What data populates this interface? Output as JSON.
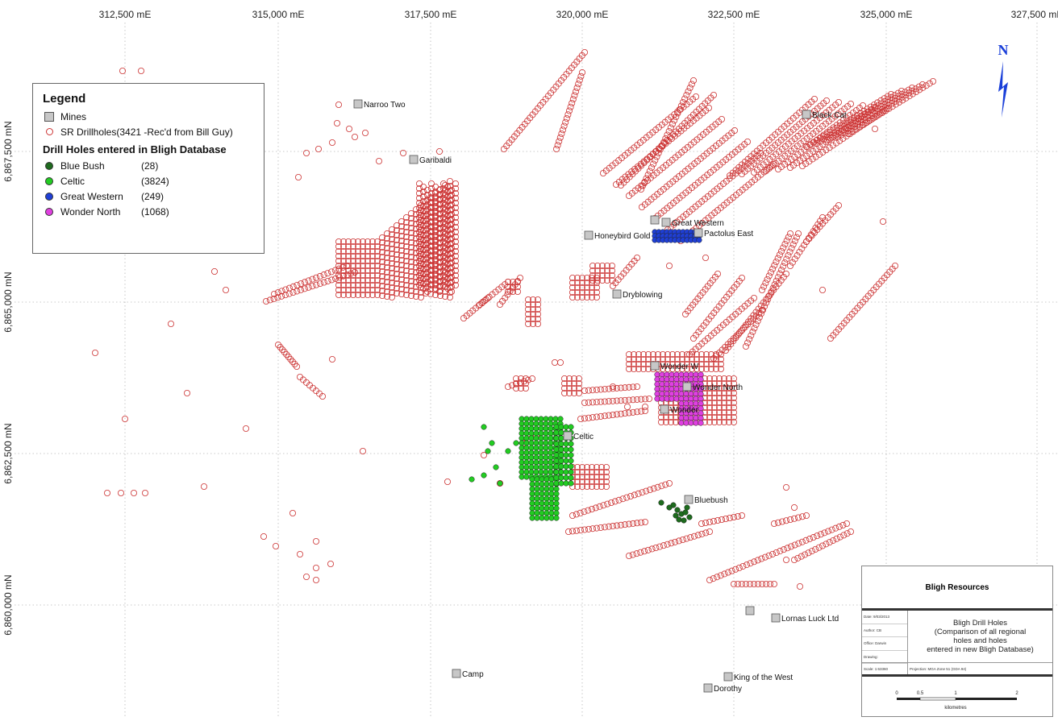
{
  "axes": {
    "easting_labels": [
      "312,500 mE",
      "315,000 mE",
      "317,500 mE",
      "320,000 mE",
      "322,500 mE",
      "325,000 mE",
      "327,500 mE"
    ],
    "northing_labels": [
      "6,867,500 mN",
      "6,865,000 mN",
      "6,862,500 mN",
      "6,860,000 mN"
    ]
  },
  "legend": {
    "title": "Legend",
    "mines_label": "Mines",
    "sr_label": "SR Drillholes(3421 -Rec'd from Bill Guy)",
    "bligh_title": "Drill Holes entered in Bligh Database",
    "series": [
      {
        "name": "Blue Bush",
        "count": "(28)",
        "color": "#1e6b1e"
      },
      {
        "name": "Celtic",
        "count": "(3824)",
        "color": "#22cc22"
      },
      {
        "name": "Great Western",
        "count": "(249)",
        "color": "#1f3fd6"
      },
      {
        "name": "Wonder North",
        "count": "(1068)",
        "color": "#e040e0"
      }
    ]
  },
  "mines": [
    {
      "name": "Narroo Two"
    },
    {
      "name": "Garibaldi"
    },
    {
      "name": "Black Cat"
    },
    {
      "name": "Great Western"
    },
    {
      "name": "Honeybird Gold"
    },
    {
      "name": "Pactolus East"
    },
    {
      "name": "Dryblowing"
    },
    {
      "name": "Wonder W"
    },
    {
      "name": "Wonder North"
    },
    {
      "name": "Wonder"
    },
    {
      "name": "Celtic"
    },
    {
      "name": "Bluebush"
    },
    {
      "name": "Lornas Luck Ltd"
    },
    {
      "name": "Camp"
    },
    {
      "name": "King of the West"
    },
    {
      "name": "Dorothy"
    }
  ],
  "north_label": "N",
  "title_block": {
    "company": "Bligh Resources",
    "title_lines": [
      "Bligh Drill Holes",
      "(Comparison of all regional",
      "holes and holes",
      "entered in new Bligh Database)"
    ],
    "meta": [
      "Date: 9/03/2013",
      "Author: CB",
      "Office: Darwin",
      "Drawing:"
    ],
    "scale": "Scale: 1:63360",
    "projection": "Projection: MGA Zone 51 (GDA 94)",
    "scalebar_ticks": [
      "0",
      "0.5",
      "1",
      "2"
    ],
    "scalebar_unit": "kilometres"
  },
  "colors": {
    "sr_ring": "#cc3333",
    "grid": "#b9b9b9",
    "north_arrow": "#1a3fd9",
    "mine_fill": "#c7c7c7"
  }
}
